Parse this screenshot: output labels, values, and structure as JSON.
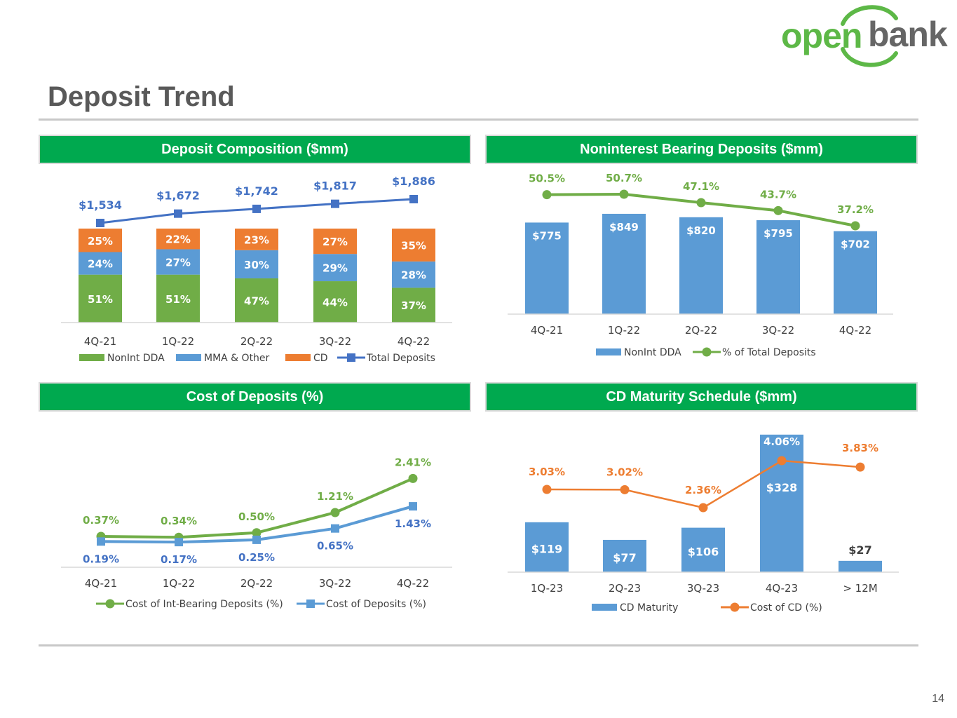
{
  "brand": {
    "logo_part1": "open",
    "logo_part2": "bank",
    "green": "#5db847",
    "gray": "#666666"
  },
  "page": {
    "title": "Deposit Trend",
    "number": "14"
  },
  "colors": {
    "header_bg": "#00a94f",
    "green": "#70ad47",
    "blue": "#5b9bd5",
    "dark_blue": "#4472c4",
    "orange": "#ed7d31"
  },
  "chart_data": [
    {
      "id": "composition",
      "type": "bar",
      "stacked": true,
      "title": "Deposit Composition ($mm)",
      "categories": [
        "4Q-21",
        "1Q-22",
        "2Q-22",
        "3Q-22",
        "4Q-22"
      ],
      "series": [
        {
          "name": "NonInt DDA",
          "values": [
            51,
            51,
            47,
            44,
            37
          ],
          "labels": [
            "51%",
            "51%",
            "47%",
            "44%",
            "37%"
          ]
        },
        {
          "name": "MMA & Other",
          "values": [
            24,
            27,
            30,
            29,
            28
          ],
          "labels": [
            "24%",
            "27%",
            "30%",
            "29%",
            "28%"
          ]
        },
        {
          "name": "CD",
          "values": [
            25,
            22,
            23,
            27,
            35
          ],
          "labels": [
            "25%",
            "22%",
            "23%",
            "27%",
            "35%"
          ]
        }
      ],
      "line": {
        "name": "Total Deposits",
        "values": [
          1534,
          1672,
          1742,
          1817,
          1886
        ],
        "labels": [
          "$1,534",
          "$1,672",
          "$1,742",
          "$1,817",
          "$1,886"
        ]
      }
    },
    {
      "id": "nonint",
      "type": "bar",
      "title": "Noninterest Bearing Deposits ($mm)",
      "categories": [
        "4Q-21",
        "1Q-22",
        "2Q-22",
        "3Q-22",
        "4Q-22"
      ],
      "bars": {
        "name": "NonInt DDA",
        "values": [
          775,
          849,
          820,
          795,
          702
        ],
        "labels": [
          "$775",
          "$849",
          "$820",
          "$795",
          "$702"
        ]
      },
      "line": {
        "name": "% of Total Deposits",
        "values": [
          50.5,
          50.7,
          47.1,
          43.7,
          37.2
        ],
        "labels": [
          "50.5%",
          "50.7%",
          "47.1%",
          "43.7%",
          "37.2%"
        ]
      }
    },
    {
      "id": "cost",
      "type": "line",
      "title": "Cost of Deposits (%)",
      "categories": [
        "4Q-21",
        "1Q-22",
        "2Q-22",
        "3Q-22",
        "4Q-22"
      ],
      "series": [
        {
          "name": "Cost of Int-Bearing Deposits (%)",
          "values": [
            0.37,
            0.34,
            0.5,
            1.21,
            2.41
          ],
          "labels": [
            "0.37%",
            "0.34%",
            "0.50%",
            "1.21%",
            "2.41%"
          ]
        },
        {
          "name": "Cost of Deposits (%)",
          "values": [
            0.19,
            0.17,
            0.25,
            0.65,
            1.43
          ],
          "labels": [
            "0.19%",
            "0.17%",
            "0.25%",
            "0.65%",
            "1.43%"
          ]
        }
      ]
    },
    {
      "id": "cd",
      "type": "bar",
      "title": "CD Maturity Schedule ($mm)",
      "categories": [
        "1Q-23",
        "2Q-23",
        "3Q-23",
        "4Q-23",
        "> 12M"
      ],
      "bars": {
        "name": "CD Maturity",
        "values": [
          119,
          77,
          106,
          328,
          27
        ],
        "labels": [
          "$119",
          "$77",
          "$106",
          "$328",
          "$27"
        ]
      },
      "line": {
        "name": "Cost of CD (%)",
        "values": [
          3.03,
          3.02,
          2.36,
          4.06,
          3.83
        ],
        "labels": [
          "3.03%",
          "3.02%",
          "2.36%",
          "4.06%",
          "3.83%"
        ]
      }
    }
  ]
}
